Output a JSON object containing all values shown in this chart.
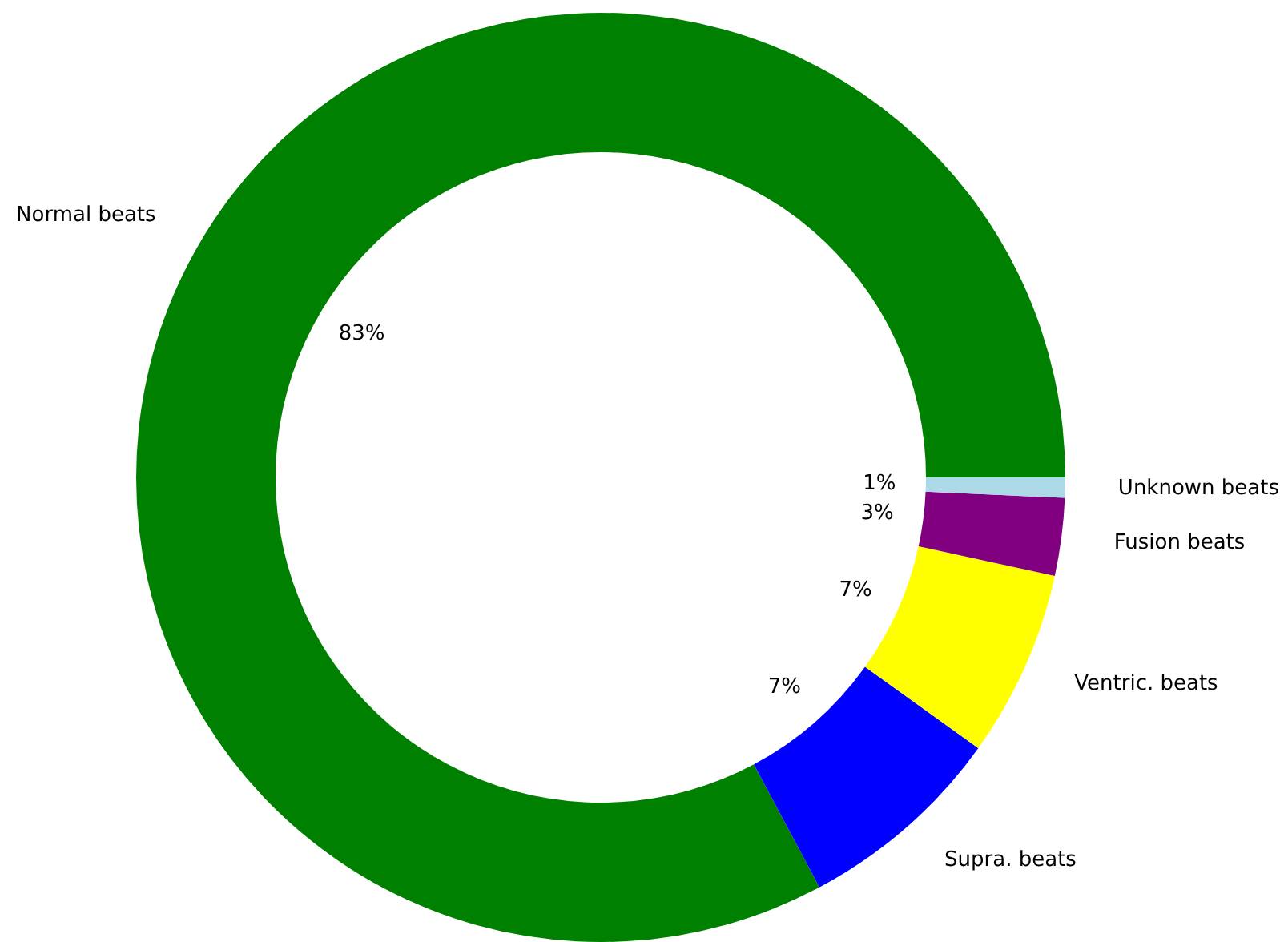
{
  "chart_data": {
    "type": "donut",
    "categories": [
      "Normal beats",
      "Supra. beats",
      "Ventric. beats",
      "Fusion beats",
      "Unknown beats"
    ],
    "values": [
      82.8,
      7.3,
      6.5,
      2.7,
      0.7
    ],
    "value_labels": [
      "83%",
      "7%",
      "7%",
      "3%",
      "1%"
    ],
    "colors": [
      "#008000",
      "#0000ff",
      "#ffff00",
      "#800080",
      "#add8e6"
    ],
    "legend": false
  }
}
